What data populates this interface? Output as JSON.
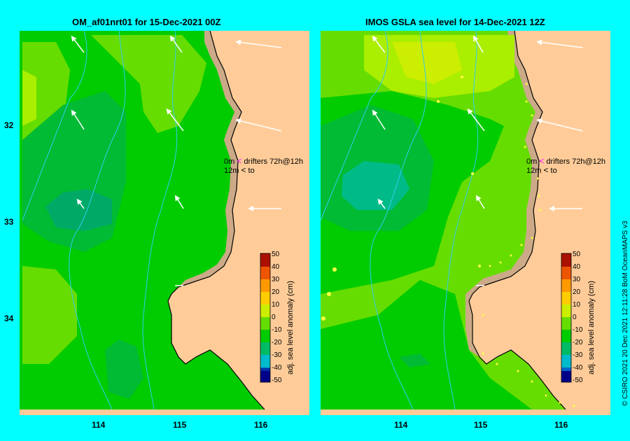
{
  "left_panel": {
    "title": "OM_af01nrt01 for 15-Dec-2021 00Z"
  },
  "right_panel": {
    "title": "IMOS GSLA sea level  for 14-Dec-2021 12Z"
  },
  "axes": {
    "lon_ticks": [
      "114",
      "115",
      "116"
    ],
    "lat_ticks": [
      "32",
      "33",
      "34"
    ]
  },
  "legend": {
    "row1_left": "0m",
    "row1_right": "drifters 72h@12h",
    "row2_left": "12m",
    "row2_right": "to",
    "row1_arrow": "<",
    "row2_arrow": "<",
    "row1_color": "#ff00ff",
    "row2_color": "#000000"
  },
  "colorbar": {
    "label": "adj. sea level anomaly (cm)",
    "ticks": [
      "50",
      "40",
      "30",
      "20",
      "10",
      "0",
      "-10",
      "-20",
      "-30",
      "-40",
      "-50"
    ]
  },
  "credit": "© CSIRO 2021   20 Dec 2021 12:11:28 BoM OceanMAPS v3"
}
